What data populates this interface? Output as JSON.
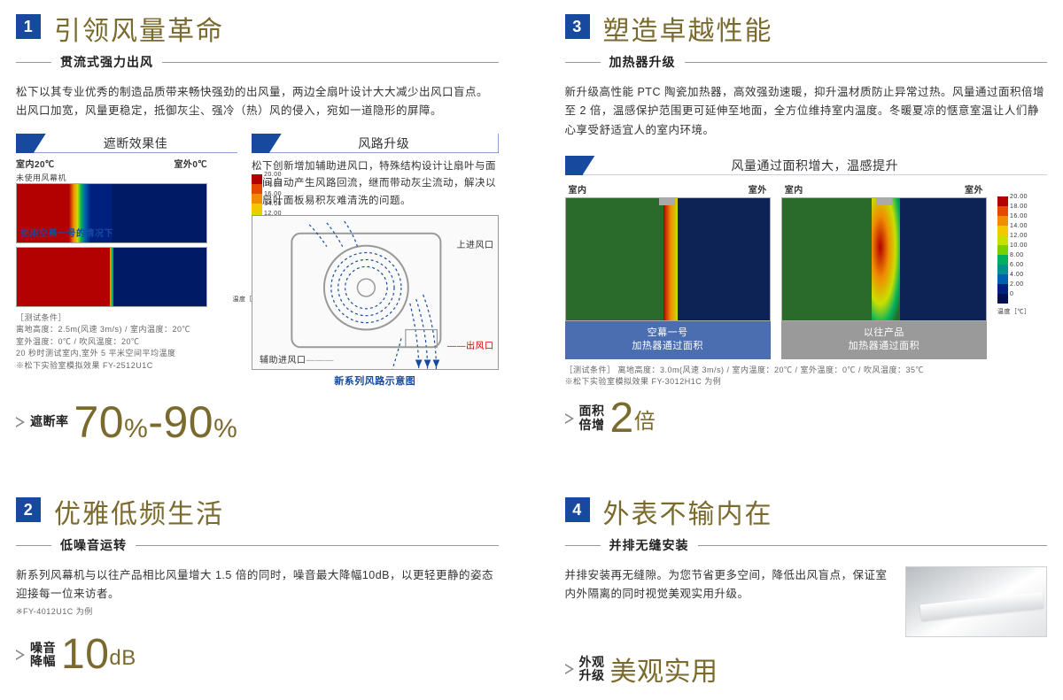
{
  "colors": {
    "accent_blue": "#174a9e",
    "title_gold": "#7a6a2e",
    "text": "#333333",
    "ruler": "#999999",
    "cap_blue": "#4b6eb0",
    "cap_gray": "#9a9a9a"
  },
  "heatmap_legend": {
    "values": [
      "20.00",
      "18.00",
      "16.00",
      "14.00",
      "12.00",
      "10.00",
      "8.00",
      "6.00",
      "4.00",
      "2.00",
      "0"
    ],
    "colors": [
      "#b30000",
      "#e34a00",
      "#f08c00",
      "#f2c800",
      "#c8e000",
      "#78d000",
      "#00b060",
      "#009090",
      "#0060b0",
      "#002080",
      "#001050"
    ],
    "unit": "温度［℃］"
  },
  "sections": {
    "s1": {
      "num": "1",
      "title": "引领风量革命",
      "subtitle": "贯流式强力出风",
      "body": "松下以其专业优秀的制造品质带来畅快强劲的出风量，两边全扇叶设计大大减少出风口盲点。出风口加宽，风量更稳定，抵御灰尘、强冷（热）风的侵入，宛如一道隐形的屏障。",
      "tab_left": "遮断效果佳",
      "tab_right": "风路升级",
      "hm_indoor": "室内20℃",
      "hm_outdoor": "室外0℃",
      "hm_no_curtain": "未使用风幕机",
      "hm_caption": "使用空幕一号的情况下",
      "hm_notes": "［测试条件］\n离地高度：2.5m(风速 3m/s) / 室内温度：20℃\n室外温度：0℃ / 吹风温度：20℃\n20 秒时测试室内,室外 5 平米空间平均温度\n※松下实验室模拟效果 FY-2512U1C",
      "right_body": "松下创新增加辅助进风口，特殊结构设计让扇叶与面板间自动产生风路回流，继而带动灰尘流动，解决以往扇叶面板易积灰难清洗的问题。",
      "af_in": "上进风口",
      "af_aux": "辅助进风口",
      "af_out": "出风口",
      "af_caption": "新系列风路示意图",
      "stat_label": "遮断率",
      "stat_value": "70%-90%"
    },
    "s2": {
      "num": "2",
      "title": "优雅低频生活",
      "subtitle": "低噪音运转",
      "body": "新系列风幕机与以往产品相比风量增大 1.5 倍的同时，噪音最大降幅10dB，以更轻更静的姿态迎接每一位来访者。",
      "note": "※FY-4012U1C 为例",
      "stat_label1": "噪音",
      "stat_label2": "降幅",
      "stat_num": "10",
      "stat_unit": "dB"
    },
    "s3": {
      "num": "3",
      "title": "塑造卓越性能",
      "subtitle": "加热器升级",
      "body": "新升级高性能 PTC 陶瓷加热器，高效强劲速暖，抑升温材质防止异常过热。风量通过面积倍增至 2 倍，温感保护范围更可延伸至地面，全方位维持室内温度。冬暖夏凉的惬意室温让人们静心享受舒适宜人的室内环境。",
      "tab": "风量通过面积增大，温感提升",
      "indoor": "室内",
      "outdoor": "室外",
      "cap_new1": "空幕一号",
      "cap_new2": "加热器通过面积",
      "cap_old1": "以往产品",
      "cap_old2": "加热器通过面积",
      "notes": "［测试条件］ 离地高度：3.0m(风速 3m/s) / 室内温度：20℃ / 室外温度：0℃ / 吹风温度：35℃\n※松下实验室模拟效果 FY-3012H1C 为例",
      "stat_label1": "面积",
      "stat_label2": "倍增",
      "stat_num": "2",
      "stat_unit": "倍"
    },
    "s4": {
      "num": "4",
      "title": "外表不输内在",
      "subtitle": "并排无缝安装",
      "body": "并排安装再无缝隙。为您节省更多空间，降低出风盲点，保证室内外隔离的同时视觉美观实用升级。",
      "stat_label1": "外观",
      "stat_label2": "升级",
      "stat_value": "美观实用"
    }
  }
}
